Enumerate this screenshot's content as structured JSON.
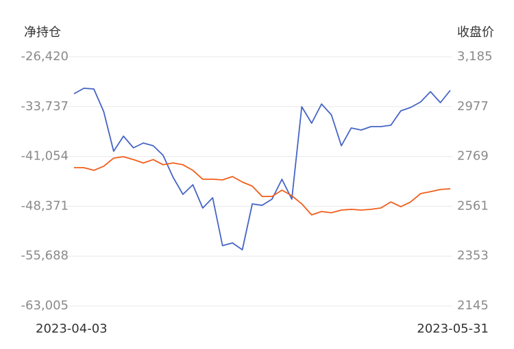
{
  "chart_data": {
    "type": "line",
    "y_label": "净持仓",
    "y2_label": "收盘价",
    "categories": [
      "2023-04-03",
      null,
      null,
      null,
      null,
      null,
      null,
      null,
      null,
      null,
      null,
      null,
      null,
      null,
      null,
      null,
      null,
      null,
      null,
      null,
      null,
      null,
      null,
      null,
      null,
      null,
      null,
      null,
      null,
      null,
      null,
      null,
      null,
      null,
      null,
      null,
      null,
      null,
      "2023-05-31"
    ],
    "series": [
      {
        "color": "#4463c6",
        "axis": "y",
        "values": [
          -31847,
          -31043,
          -31144,
          -34460,
          -40289,
          -38078,
          -39787,
          -39083,
          -39485,
          -40892,
          -44108,
          -46621,
          -45214,
          -48631,
          -47123,
          -54158,
          -53756,
          -54761,
          -48028,
          -48229,
          -47324,
          -44410,
          -47324,
          -33757,
          -36169,
          -33355,
          -34963,
          -39485,
          -36872,
          -37174,
          -36671,
          -36671,
          -36470,
          -34360,
          -33857,
          -33053,
          -31546,
          -33154,
          -31345
        ]
      },
      {
        "color": "#f25c19",
        "axis": "y2",
        "values": [
          2722,
          2722,
          2711,
          2728,
          2762,
          2768,
          2756,
          2742,
          2756,
          2734,
          2742,
          2734,
          2711,
          2674,
          2674,
          2671,
          2685,
          2662,
          2645,
          2602,
          2602,
          2628,
          2605,
          2571,
          2525,
          2539,
          2534,
          2545,
          2548,
          2545,
          2548,
          2554,
          2579,
          2559,
          2579,
          2614,
          2622,
          2631,
          2634
        ]
      }
    ],
    "ylim": [
      -63005,
      -26420
    ],
    "yticks": [
      {
        "value": -63005,
        "label": "-63,005"
      },
      {
        "value": -55688,
        "label": "-55,688"
      },
      {
        "value": -48371,
        "label": "-48,371"
      },
      {
        "value": -41054,
        "label": "-41,054"
      },
      {
        "value": -33737,
        "label": "-33,737"
      },
      {
        "value": -26420,
        "label": "-26,420"
      }
    ],
    "y2lim": [
      2145,
      3185
    ],
    "y2ticks": [
      2145,
      2353,
      2561,
      2769,
      2977,
      {
        "value": 3185,
        "label": "3,185"
      }
    ],
    "grid": true
  }
}
